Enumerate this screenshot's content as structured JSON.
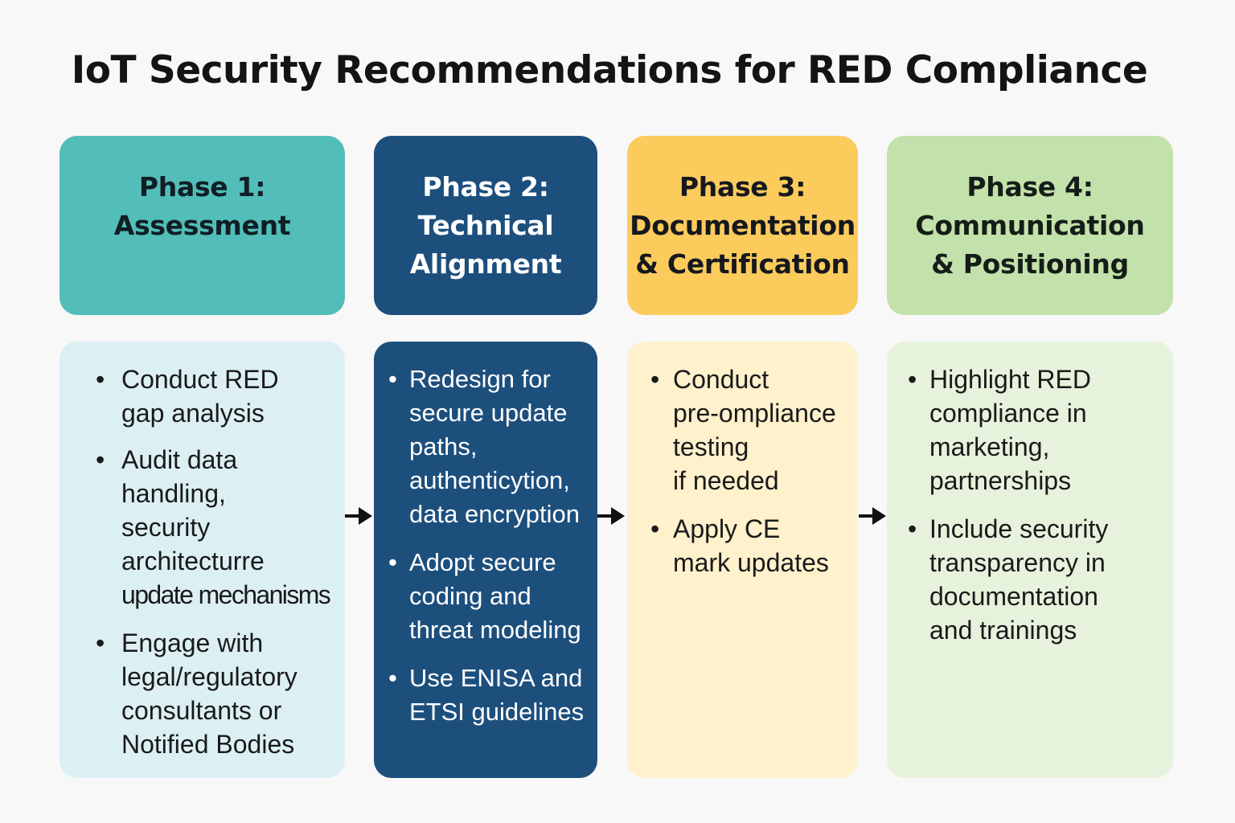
{
  "title": "IoT Security Recommendations for RED Compliance",
  "phases": [
    {
      "header_lines": [
        "Phase 1:",
        "Assessment"
      ],
      "bullets": [
        [
          "Conduct RED",
          "gap analysis"
        ],
        [
          "Audit data",
          "handling,",
          "security",
          "architecturre",
          "update mechanisms"
        ],
        [
          "Engage with",
          "legal/regulatory",
          "consultants or",
          "Notified Bodies"
        ]
      ]
    },
    {
      "header_lines": [
        "Phase 2:",
        "Technical",
        "Alignment"
      ],
      "bullets": [
        [
          "Redesign for",
          "secure update",
          "paths,",
          "authenticytion,",
          "data encryption"
        ],
        [
          "Adopt secure",
          "coding and",
          "threat modeling"
        ],
        [
          "Use ENISA and",
          "ETSI guidelines"
        ]
      ]
    },
    {
      "header_lines": [
        "Phase 3:",
        "Documentation",
        "& Certification"
      ],
      "bullets": [
        [
          "Conduct",
          "pre-ompliance",
          "testing",
          "if needed"
        ],
        [
          "Apply CE",
          "mark updates"
        ]
      ]
    },
    {
      "header_lines": [
        "Phase 4:",
        "Communication",
        "& Positioning"
      ],
      "bullets": [
        [
          "Highlight RED",
          "compliance in",
          "marketing,",
          "partnerships"
        ],
        [
          "Include security",
          "transparency in",
          "documentation",
          "and trainings"
        ]
      ]
    }
  ],
  "bullet_symbol": "•",
  "arrow_icon": "right-arrow-icon"
}
